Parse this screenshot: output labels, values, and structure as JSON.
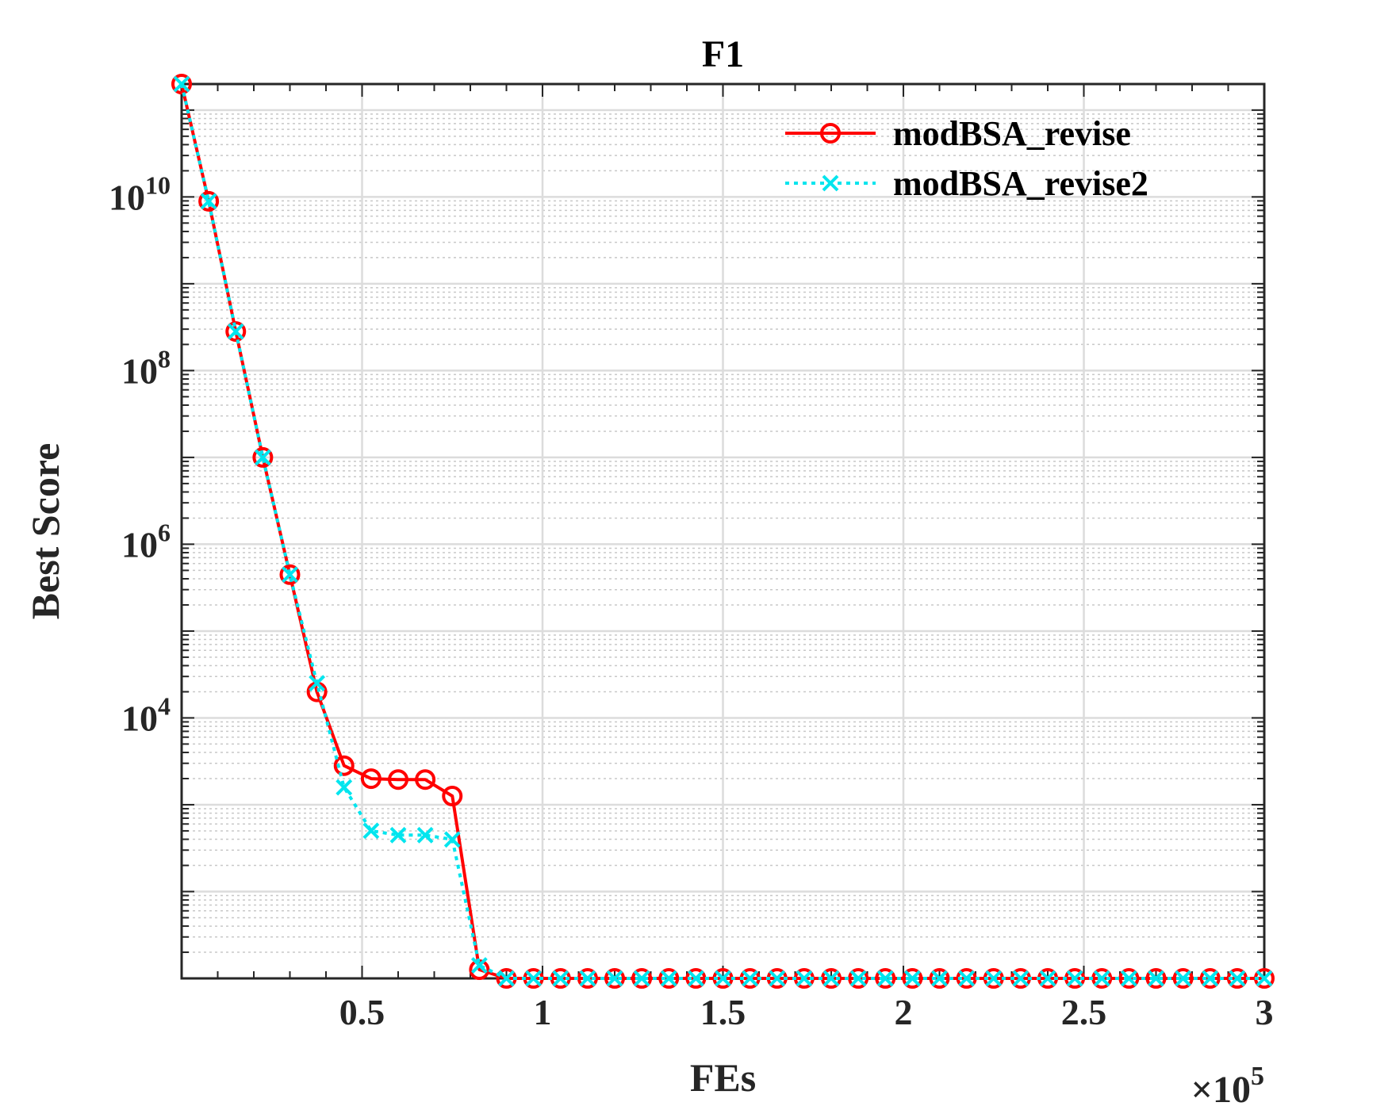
{
  "chart_data": {
    "type": "line",
    "title": "F1",
    "xlabel": "FEs",
    "ylabel": "Best Score",
    "x_exponent_label": {
      "base": "×10",
      "exp": "5"
    },
    "xscale": "linear",
    "yscale": "log",
    "xlim": [
      0,
      300000
    ],
    "ylim_log10": [
      1,
      11.3
    ],
    "grid": true,
    "minor_grid": true,
    "legend_position": "top-right",
    "x_ticks": [
      {
        "value": 50000,
        "label": "0.5"
      },
      {
        "value": 100000,
        "label": "1"
      },
      {
        "value": 150000,
        "label": "1.5"
      },
      {
        "value": 200000,
        "label": "2"
      },
      {
        "value": 250000,
        "label": "2.5"
      },
      {
        "value": 300000,
        "label": "3"
      }
    ],
    "y_ticks": [
      {
        "log10": 4,
        "base": "10",
        "exp": "4"
      },
      {
        "log10": 6,
        "base": "10",
        "exp": "6"
      },
      {
        "log10": 8,
        "base": "10",
        "exp": "8"
      },
      {
        "log10": 10,
        "base": "10",
        "exp": "10"
      }
    ],
    "x": [
      0,
      7500,
      15000,
      22500,
      30000,
      37500,
      45000,
      52500,
      60000,
      67500,
      75000,
      82500,
      90000,
      97500,
      105000,
      112500,
      120000,
      127500,
      135000,
      142500,
      150000,
      157500,
      165000,
      172500,
      180000,
      187500,
      195000,
      202500,
      210000,
      217500,
      225000,
      232500,
      240000,
      247500,
      255000,
      262500,
      270000,
      277500,
      285000,
      292500,
      300000
    ],
    "series": [
      {
        "name": "modBSA_revise",
        "color": "#ff0000",
        "line": "solid",
        "marker": "circle",
        "log10_values": [
          11.3,
          9.95,
          8.45,
          7.0,
          5.65,
          4.3,
          3.45,
          3.3,
          3.29,
          3.29,
          3.1,
          1.1,
          1.0,
          1.0,
          1.0,
          1.0,
          1.0,
          1.0,
          1.0,
          1.0,
          1.0,
          1.0,
          1.0,
          1.0,
          1.0,
          1.0,
          1.0,
          1.0,
          1.0,
          1.0,
          1.0,
          1.0,
          1.0,
          1.0,
          1.0,
          1.0,
          1.0,
          1.0,
          1.0,
          1.0,
          1.0
        ]
      },
      {
        "name": "modBSA_revise2",
        "color": "#00e5ee",
        "line": "dotted",
        "marker": "x",
        "log10_values": [
          11.3,
          9.95,
          8.45,
          7.0,
          5.65,
          4.4,
          3.2,
          2.7,
          2.65,
          2.65,
          2.6,
          1.15,
          1.0,
          1.0,
          1.0,
          1.0,
          1.0,
          1.0,
          1.0,
          1.0,
          1.0,
          1.0,
          1.0,
          1.0,
          1.0,
          1.0,
          1.0,
          1.0,
          1.0,
          1.0,
          1.0,
          1.0,
          1.0,
          1.0,
          1.0,
          1.0,
          1.0,
          1.0,
          1.0,
          1.0,
          1.0
        ]
      }
    ]
  }
}
